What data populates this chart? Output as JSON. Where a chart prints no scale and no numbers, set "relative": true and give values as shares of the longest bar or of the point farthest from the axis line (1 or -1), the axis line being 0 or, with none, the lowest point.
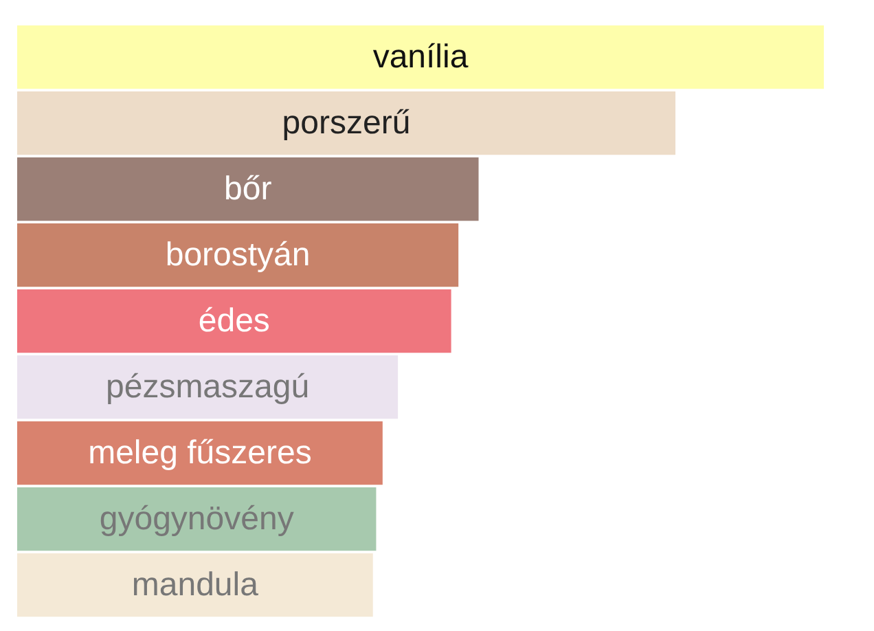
{
  "chart_data": {
    "type": "bar",
    "orientation": "horizontal",
    "relative": true,
    "data_labels": false,
    "grid": false,
    "categories": [
      "vanília",
      "porszerű",
      "bőr",
      "borostyán",
      "édes",
      "pézsmaszagú",
      "meleg fűszeres",
      "gyógynövény",
      "mandula"
    ],
    "values": [
      1,
      0.816,
      0.572,
      0.547,
      0.538,
      0.472,
      0.453,
      0.445,
      0.441
    ],
    "colors": [
      "#fefeab",
      "#eddcc8",
      "#9b7f76",
      "#c8836a",
      "#ef767e",
      "#ebe3ef",
      "#d9826e",
      "#a7c9ae",
      "#f4e9d6"
    ]
  }
}
